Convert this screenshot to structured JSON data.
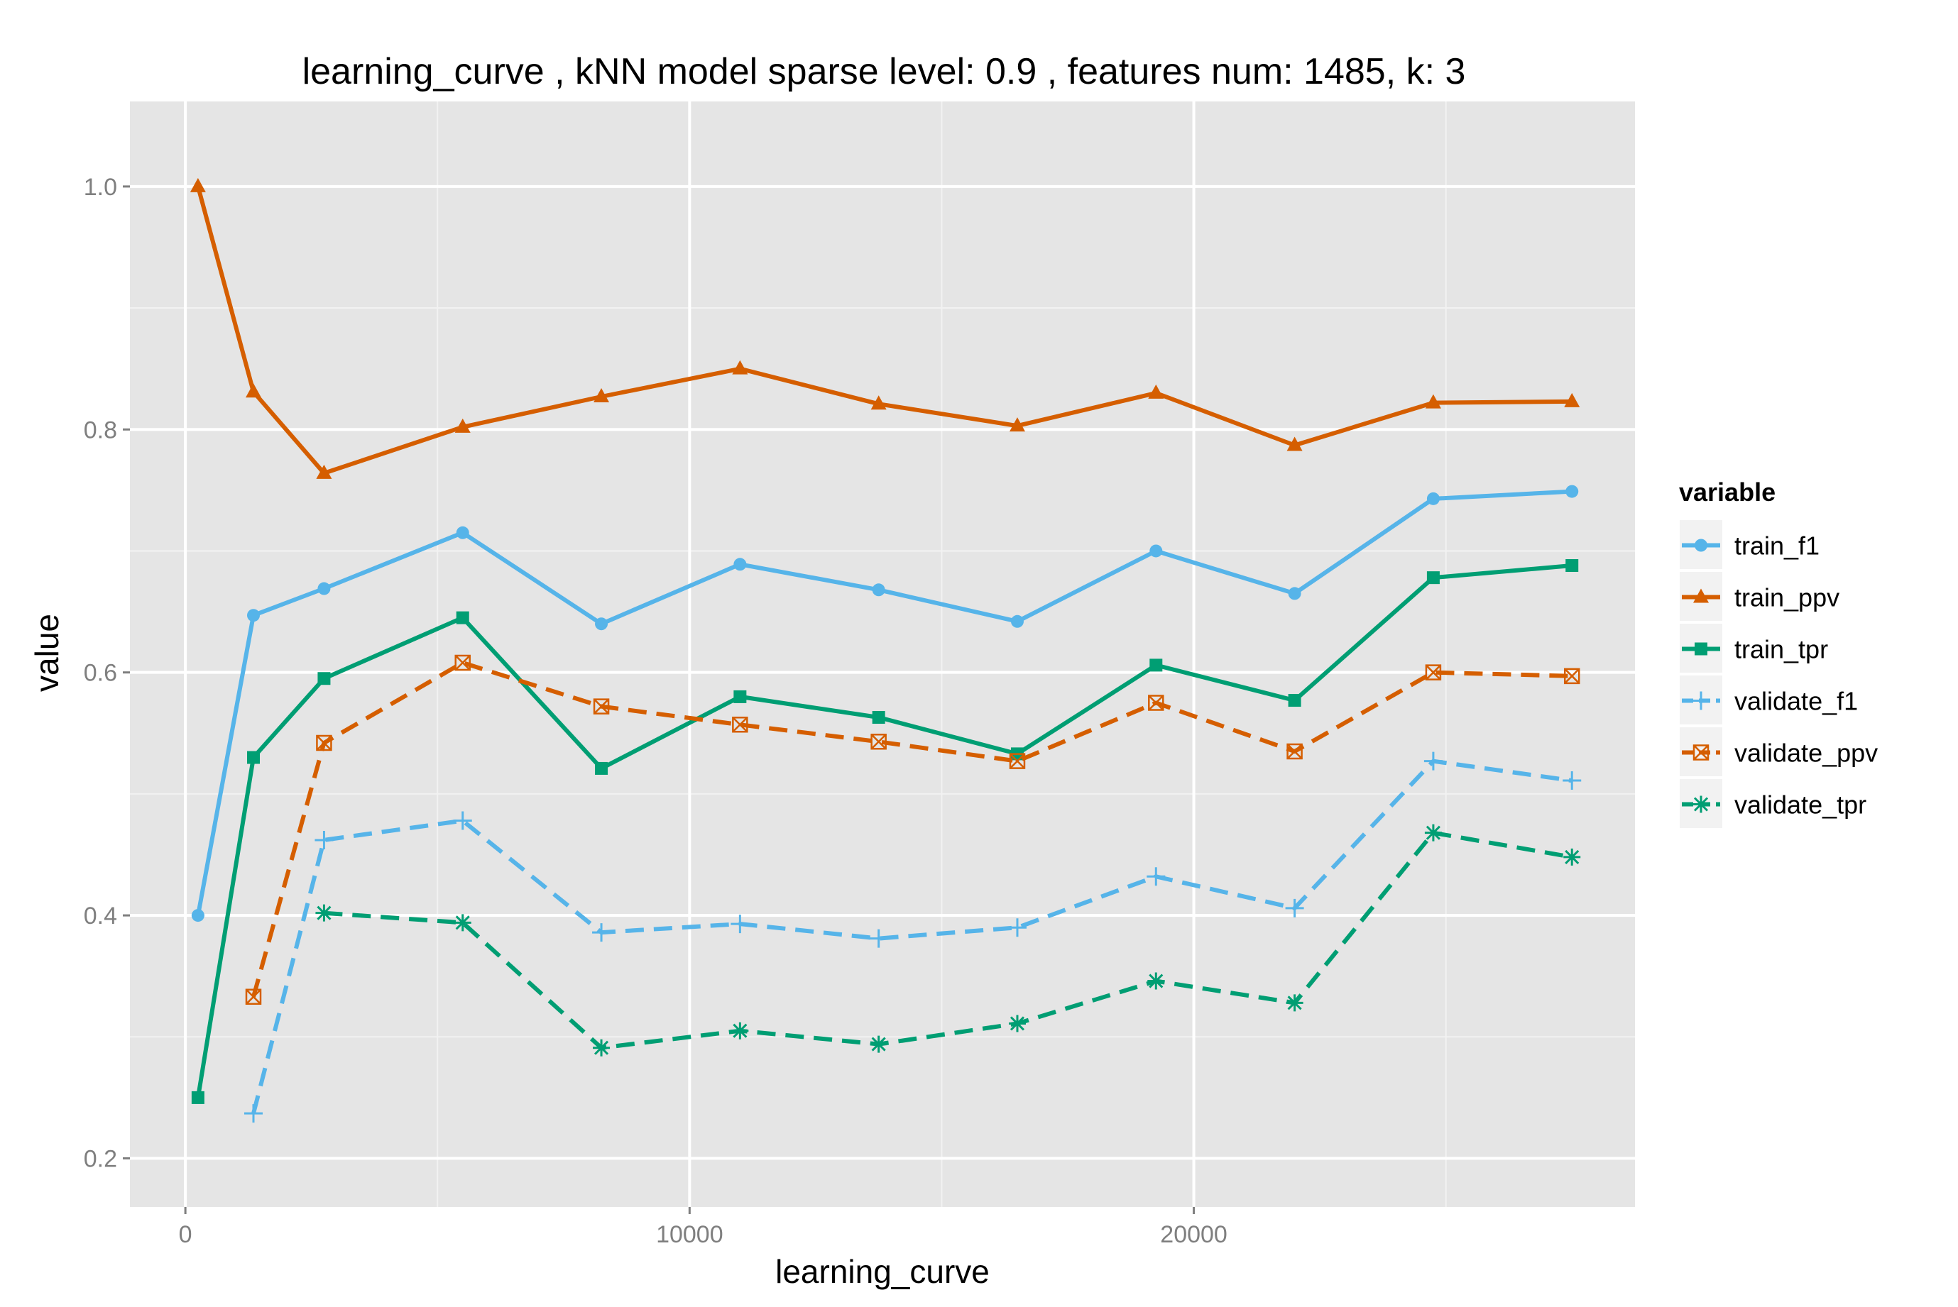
{
  "chart_data": {
    "type": "line",
    "title": "learning_curve ,  kNN model sparse level: 0.9 , features num: 1485, k: 3",
    "xlabel": "learning_curve",
    "ylabel": "value",
    "xlim": [
      -1100,
      28750
    ],
    "ylim": [
      0.16,
      1.07
    ],
    "x_ticks": [
      0,
      10000,
      20000
    ],
    "x_tick_labels": [
      "0",
      "10000",
      "20000"
    ],
    "y_ticks": [
      0.2,
      0.4,
      0.6,
      0.8,
      1.0
    ],
    "y_tick_labels": [
      "0.2",
      "0.4",
      "0.6",
      "0.8",
      "1.0"
    ],
    "grid": true,
    "background": "#e5e5e5",
    "legend": {
      "title": "variable",
      "position": "right"
    },
    "series": [
      {
        "name": "train_f1",
        "color": "#56b4e9",
        "dashed": false,
        "marker": "circle",
        "x": [
          250,
          1350,
          2750,
          5500,
          8250,
          11000,
          13750,
          16500,
          19250,
          22000,
          24750,
          27500
        ],
        "y": [
          0.4,
          0.647,
          0.669,
          0.715,
          0.64,
          0.689,
          0.668,
          0.642,
          0.7,
          0.665,
          0.743,
          0.749
        ]
      },
      {
        "name": "train_ppv",
        "color": "#d55e00",
        "dashed": false,
        "marker": "triangle",
        "x": [
          250,
          1350,
          2750,
          5500,
          8250,
          11000,
          13750,
          16500,
          19250,
          22000,
          24750,
          27500
        ],
        "y": [
          1.0,
          0.831,
          0.764,
          0.802,
          0.827,
          0.85,
          0.821,
          0.803,
          0.83,
          0.787,
          0.822,
          0.823
        ]
      },
      {
        "name": "train_tpr",
        "color": "#009e73",
        "dashed": false,
        "marker": "square",
        "x": [
          250,
          1350,
          2750,
          5500,
          8250,
          11000,
          13750,
          16500,
          19250,
          22000,
          24750,
          27500
        ],
        "y": [
          0.25,
          0.53,
          0.595,
          0.645,
          0.521,
          0.58,
          0.563,
          0.533,
          0.606,
          0.577,
          0.678,
          0.688
        ]
      },
      {
        "name": "validate_f1",
        "color": "#56b4e9",
        "dashed": true,
        "marker": "plus",
        "x": [
          1350,
          2750,
          5500,
          8250,
          11000,
          13750,
          16500,
          19250,
          22000,
          24750,
          27500
        ],
        "y": [
          0.237,
          0.462,
          0.478,
          0.386,
          0.393,
          0.381,
          0.39,
          0.432,
          0.406,
          0.527,
          0.511
        ]
      },
      {
        "name": "validate_ppv",
        "color": "#d55e00",
        "dashed": true,
        "marker": "boxx",
        "x": [
          1350,
          2750,
          5500,
          8250,
          11000,
          13750,
          16500,
          19250,
          22000,
          24750,
          27500
        ],
        "y": [
          0.333,
          0.542,
          0.608,
          0.572,
          0.557,
          0.543,
          0.527,
          0.575,
          0.535,
          0.6,
          0.597
        ]
      },
      {
        "name": "validate_tpr",
        "color": "#009e73",
        "dashed": true,
        "marker": "asterisk",
        "x": [
          2750,
          5500,
          8250,
          11000,
          13750,
          16500,
          19250,
          22000,
          24750,
          27500
        ],
        "y": [
          0.402,
          0.394,
          0.291,
          0.305,
          0.294,
          0.311,
          0.346,
          0.328,
          0.468,
          0.448
        ]
      }
    ]
  }
}
